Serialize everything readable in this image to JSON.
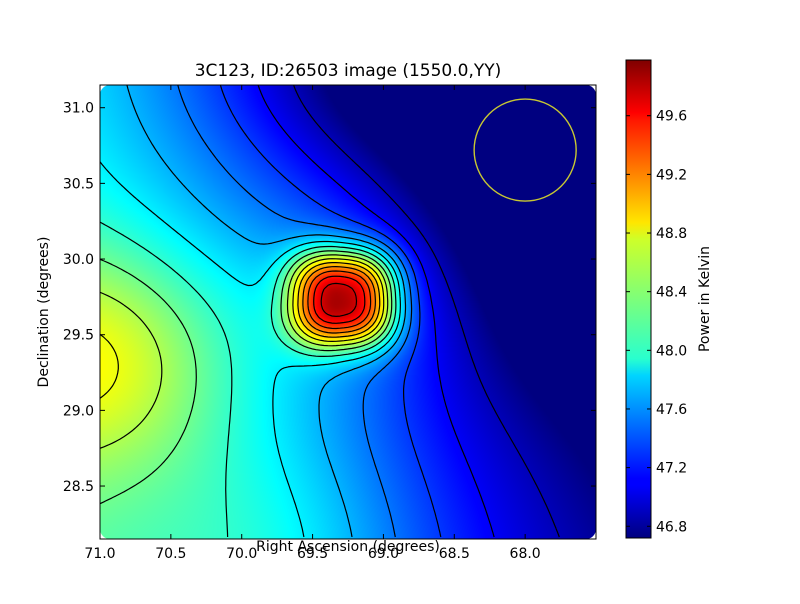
{
  "chart_data": {
    "type": "heatmap",
    "title": "3C123, ID:26503 image (1550.0,YY)",
    "xlabel": "Right Ascension (degrees)",
    "ylabel": "Declination (degrees)",
    "xlim": [
      71.0,
      67.5
    ],
    "ylim": [
      28.15,
      31.15
    ],
    "x_ticks": [
      "71.0",
      "70.5",
      "70.0",
      "69.5",
      "69.0",
      "68.5",
      "68.0"
    ],
    "y_ticks": [
      "28.5",
      "29.0",
      "29.5",
      "30.0",
      "30.5",
      "31.0"
    ],
    "colorbar": {
      "label": "Power in Kelvin",
      "colormap": "jet",
      "range": [
        46.72,
        49.98
      ],
      "ticks": [
        "46.8",
        "47.2",
        "47.6",
        "48.0",
        "48.4",
        "48.8",
        "49.2",
        "49.6"
      ]
    },
    "peak": {
      "ra": 69.3,
      "dec": 29.68,
      "value": 49.95
    },
    "secondary_maximum": {
      "ra": 71.0,
      "dec": 29.15,
      "value": 48.75
    },
    "minimum": {
      "ra": 67.5,
      "dec": 30.0,
      "value": 46.75
    },
    "beam_circle": {
      "ra": 68.0,
      "dec": 30.72,
      "radius_deg": 0.36,
      "color": "#c8c832"
    },
    "contour_color": "#000000",
    "grid": false,
    "legend": "none"
  }
}
